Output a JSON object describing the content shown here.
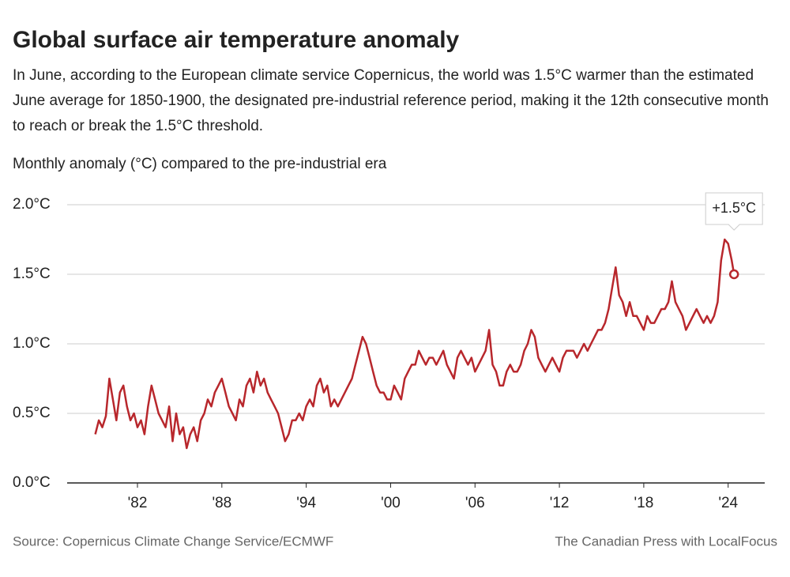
{
  "chart_data": {
    "type": "line",
    "title": "Global surface air temperature anomaly",
    "subtitle": "In June, according to the European climate service Copernicus, the world was 1.5°C warmer than the estimated June average for 1850-1900, the designated pre-industrial reference period, making it the 12th consecutive month to reach or break the 1.5°C threshold.",
    "y_label": "Monthly anomaly (°C) compared to the pre-industrial era",
    "annotation": "+1.5°C",
    "source": "Source:  Copernicus Climate Change Service/ECMWF",
    "credit": "The Canadian Press with LocalFocus",
    "xlim": [
      1977,
      2026.6
    ],
    "ylim": [
      0,
      2
    ],
    "xticks": [
      {
        "value": 1982,
        "label": "'82"
      },
      {
        "value": 1988,
        "label": "'88"
      },
      {
        "value": 1994,
        "label": "'94"
      },
      {
        "value": 2000,
        "label": "'00"
      },
      {
        "value": 2006,
        "label": "'06"
      },
      {
        "value": 2012,
        "label": "'12"
      },
      {
        "value": 2018,
        "label": "'18"
      },
      {
        "value": 2024,
        "label": "'24"
      }
    ],
    "yticks": [
      {
        "value": 0,
        "label": "0.0°C"
      },
      {
        "value": 0.5,
        "label": "0.5°C"
      },
      {
        "value": 1,
        "label": "1.0°C"
      },
      {
        "value": 1.5,
        "label": "1.5°C"
      },
      {
        "value": 2,
        "label": "2.0°C"
      }
    ],
    "grid": true,
    "x": [
      1979,
      1979.25,
      1979.5,
      1979.75,
      1980,
      1980.25,
      1980.5,
      1980.75,
      1981,
      1981.25,
      1981.5,
      1981.75,
      1982,
      1982.25,
      1982.5,
      1982.75,
      1983,
      1983.25,
      1983.5,
      1983.75,
      1984,
      1984.25,
      1984.5,
      1984.75,
      1985,
      1985.25,
      1985.5,
      1985.75,
      1986,
      1986.25,
      1986.5,
      1986.75,
      1987,
      1987.25,
      1987.5,
      1987.75,
      1988,
      1988.25,
      1988.5,
      1988.75,
      1989,
      1989.25,
      1989.5,
      1989.75,
      1990,
      1990.25,
      1990.5,
      1990.75,
      1991,
      1991.25,
      1991.5,
      1991.75,
      1992,
      1992.25,
      1992.5,
      1992.75,
      1993,
      1993.25,
      1993.5,
      1993.75,
      1994,
      1994.25,
      1994.5,
      1994.75,
      1995,
      1995.25,
      1995.5,
      1995.75,
      1996,
      1996.25,
      1996.5,
      1996.75,
      1997,
      1997.25,
      1997.5,
      1997.75,
      1998,
      1998.25,
      1998.5,
      1998.75,
      1999,
      1999.25,
      1999.5,
      1999.75,
      2000,
      2000.25,
      2000.5,
      2000.75,
      2001,
      2001.25,
      2001.5,
      2001.75,
      2002,
      2002.25,
      2002.5,
      2002.75,
      2003,
      2003.25,
      2003.5,
      2003.75,
      2004,
      2004.25,
      2004.5,
      2004.75,
      2005,
      2005.25,
      2005.5,
      2005.75,
      2006,
      2006.25,
      2006.5,
      2006.75,
      2007,
      2007.25,
      2007.5,
      2007.75,
      2008,
      2008.25,
      2008.5,
      2008.75,
      2009,
      2009.25,
      2009.5,
      2009.75,
      2010,
      2010.25,
      2010.5,
      2010.75,
      2011,
      2011.25,
      2011.5,
      2011.75,
      2012,
      2012.25,
      2012.5,
      2012.75,
      2013,
      2013.25,
      2013.5,
      2013.75,
      2014,
      2014.25,
      2014.5,
      2014.75,
      2015,
      2015.25,
      2015.5,
      2015.75,
      2016,
      2016.25,
      2016.5,
      2016.75,
      2017,
      2017.25,
      2017.5,
      2017.75,
      2018,
      2018.25,
      2018.5,
      2018.75,
      2019,
      2019.25,
      2019.5,
      2019.75,
      2020,
      2020.25,
      2020.5,
      2020.75,
      2021,
      2021.25,
      2021.5,
      2021.75,
      2022,
      2022.25,
      2022.5,
      2022.75,
      2023,
      2023.25,
      2023.5,
      2023.75,
      2024,
      2024.25,
      2024.42
    ],
    "series": [
      {
        "color": "#b8272c",
        "values": [
          0.35,
          0.45,
          0.4,
          0.48,
          0.75,
          0.6,
          0.45,
          0.65,
          0.7,
          0.55,
          0.45,
          0.5,
          0.4,
          0.45,
          0.35,
          0.55,
          0.7,
          0.6,
          0.5,
          0.45,
          0.4,
          0.55,
          0.3,
          0.5,
          0.35,
          0.4,
          0.25,
          0.35,
          0.4,
          0.3,
          0.45,
          0.5,
          0.6,
          0.55,
          0.65,
          0.7,
          0.75,
          0.65,
          0.55,
          0.5,
          0.45,
          0.6,
          0.55,
          0.7,
          0.75,
          0.65,
          0.8,
          0.7,
          0.75,
          0.65,
          0.6,
          0.55,
          0.5,
          0.4,
          0.3,
          0.35,
          0.45,
          0.45,
          0.5,
          0.45,
          0.55,
          0.6,
          0.55,
          0.7,
          0.75,
          0.65,
          0.7,
          0.55,
          0.6,
          0.55,
          0.6,
          0.65,
          0.7,
          0.75,
          0.85,
          0.95,
          1.05,
          1.0,
          0.9,
          0.8,
          0.7,
          0.65,
          0.65,
          0.6,
          0.6,
          0.7,
          0.65,
          0.6,
          0.75,
          0.8,
          0.85,
          0.85,
          0.95,
          0.9,
          0.85,
          0.9,
          0.9,
          0.85,
          0.9,
          0.95,
          0.85,
          0.8,
          0.75,
          0.9,
          0.95,
          0.9,
          0.85,
          0.9,
          0.8,
          0.85,
          0.9,
          0.95,
          1.1,
          0.85,
          0.8,
          0.7,
          0.7,
          0.8,
          0.85,
          0.8,
          0.8,
          0.85,
          0.95,
          1.0,
          1.1,
          1.05,
          0.9,
          0.85,
          0.8,
          0.85,
          0.9,
          0.85,
          0.8,
          0.9,
          0.95,
          0.95,
          0.95,
          0.9,
          0.95,
          1.0,
          0.95,
          1.0,
          1.05,
          1.1,
          1.1,
          1.15,
          1.25,
          1.4,
          1.55,
          1.35,
          1.3,
          1.2,
          1.3,
          1.2,
          1.2,
          1.15,
          1.1,
          1.2,
          1.15,
          1.15,
          1.2,
          1.25,
          1.25,
          1.3,
          1.45,
          1.3,
          1.25,
          1.2,
          1.1,
          1.15,
          1.2,
          1.25,
          1.2,
          1.15,
          1.2,
          1.15,
          1.2,
          1.3,
          1.6,
          1.75,
          1.72,
          1.6,
          1.5
        ]
      }
    ]
  }
}
